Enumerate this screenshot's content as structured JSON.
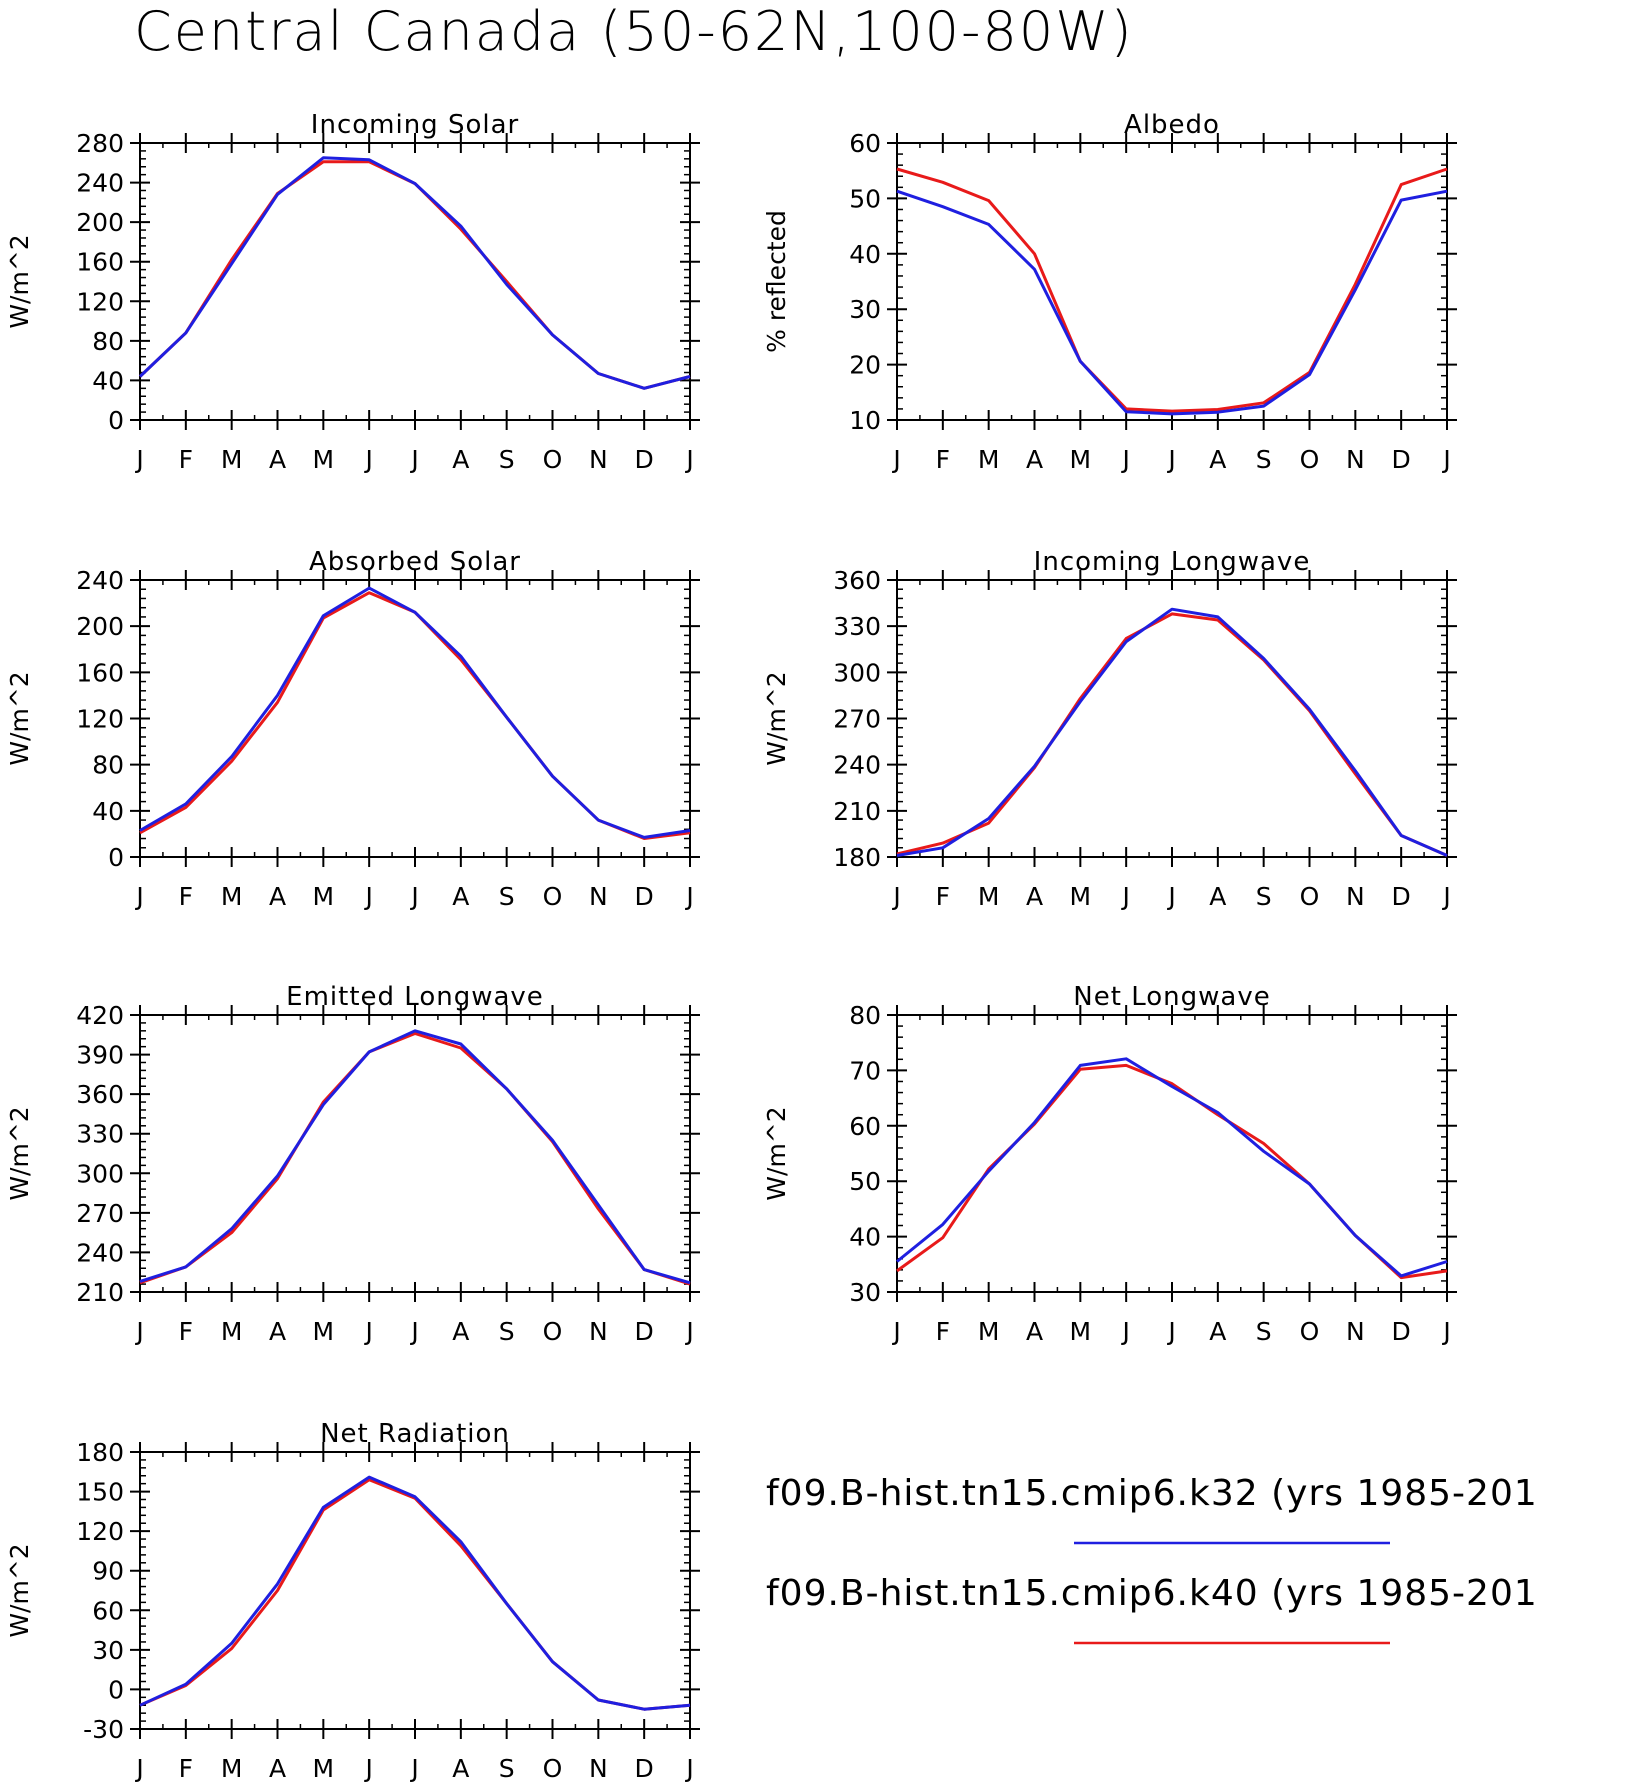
{
  "title": "Central Canada (50-62N,100-80W)",
  "legend": [
    {
      "label": "f09.B-hist.tn15.cmip6.k32 (yrs 1985-201",
      "color": "#1f1fe0"
    },
    {
      "label": "f09.B-hist.tn15.cmip6.k40 (yrs 1985-201",
      "color": "#e81a1a"
    }
  ],
  "chart_data": [
    {
      "type": "line",
      "title": "Incoming Solar",
      "ylabel": "W/m^2",
      "categories": [
        "J",
        "F",
        "M",
        "A",
        "M",
        "J",
        "J",
        "A",
        "S",
        "O",
        "N",
        "D",
        "J"
      ],
      "ylim": [
        0,
        280
      ],
      "yticks": [
        0,
        40,
        80,
        120,
        160,
        200,
        240,
        280
      ],
      "series": [
        {
          "color": "#1f1fe0",
          "values": [
            44,
            88,
            158,
            228,
            265,
            263,
            239,
            196,
            137,
            86,
            47,
            32,
            44
          ]
        },
        {
          "color": "#e81a1a",
          "values": [
            44,
            88,
            162,
            229,
            261,
            261,
            239,
            193,
            140,
            86,
            47,
            32,
            44
          ]
        }
      ]
    },
    {
      "type": "line",
      "title": "Albedo",
      "ylabel": "% reflected",
      "categories": [
        "J",
        "F",
        "M",
        "A",
        "M",
        "J",
        "J",
        "A",
        "S",
        "O",
        "N",
        "D",
        "J"
      ],
      "ylim": [
        10,
        60
      ],
      "yticks": [
        10,
        20,
        30,
        40,
        50,
        60
      ],
      "series": [
        {
          "color": "#1f1fe0",
          "values": [
            51.3,
            48.5,
            45.3,
            37.2,
            20.6,
            11.5,
            11.1,
            11.4,
            12.5,
            18.2,
            33.5,
            49.7,
            51.3
          ]
        },
        {
          "color": "#e81a1a",
          "values": [
            55.3,
            52.9,
            49.6,
            40.0,
            20.6,
            12.0,
            11.6,
            11.9,
            13.1,
            18.6,
            34.5,
            52.5,
            55.3
          ]
        }
      ]
    },
    {
      "type": "line",
      "title": "Absorbed Solar",
      "ylabel": "W/m^2",
      "categories": [
        "J",
        "F",
        "M",
        "A",
        "M",
        "J",
        "J",
        "A",
        "S",
        "O",
        "N",
        "D",
        "J"
      ],
      "ylim": [
        0,
        240
      ],
      "yticks": [
        0,
        40,
        80,
        120,
        160,
        200,
        240
      ],
      "series": [
        {
          "color": "#1f1fe0",
          "values": [
            23,
            46,
            87,
            140,
            209,
            233,
            212,
            174,
            121,
            70,
            32,
            17,
            23
          ]
        },
        {
          "color": "#e81a1a",
          "values": [
            21,
            43,
            83,
            134,
            207,
            229,
            212,
            171,
            121,
            70,
            32,
            16,
            21
          ]
        }
      ]
    },
    {
      "type": "line",
      "title": "Incoming Longwave",
      "ylabel": "W/m^2",
      "categories": [
        "J",
        "F",
        "M",
        "A",
        "M",
        "J",
        "J",
        "A",
        "S",
        "O",
        "N",
        "D",
        "J"
      ],
      "ylim": [
        180,
        360
      ],
      "yticks": [
        180,
        210,
        240,
        270,
        300,
        330,
        360
      ],
      "series": [
        {
          "color": "#1f1fe0",
          "values": [
            181,
            186,
            205,
            239,
            281,
            320,
            341,
            336,
            309,
            276,
            236,
            194,
            181
          ]
        },
        {
          "color": "#e81a1a",
          "values": [
            182,
            189,
            202,
            238,
            283,
            322,
            338,
            334,
            308,
            275,
            234,
            194,
            181
          ]
        }
      ]
    },
    {
      "type": "line",
      "title": "Emitted Longwave",
      "ylabel": "W/m^2",
      "categories": [
        "J",
        "F",
        "M",
        "A",
        "M",
        "J",
        "J",
        "A",
        "S",
        "O",
        "N",
        "D",
        "J"
      ],
      "ylim": [
        210,
        420
      ],
      "yticks": [
        210,
        240,
        270,
        300,
        330,
        360,
        390,
        420
      ],
      "series": [
        {
          "color": "#1f1fe0",
          "values": [
            218,
            229,
            258,
            298,
            352,
            392,
            408,
            398,
            364,
            325,
            276,
            227,
            217
          ]
        },
        {
          "color": "#e81a1a",
          "values": [
            217,
            229,
            255,
            296,
            354,
            392,
            406,
            395,
            364,
            324,
            273,
            227,
            216
          ]
        }
      ]
    },
    {
      "type": "line",
      "title": "Net Longwave",
      "ylabel": "W/m^2",
      "categories": [
        "J",
        "F",
        "M",
        "A",
        "M",
        "J",
        "J",
        "A",
        "S",
        "O",
        "N",
        "D",
        "J"
      ],
      "ylim": [
        30,
        80
      ],
      "yticks": [
        30,
        40,
        50,
        60,
        70,
        80
      ],
      "series": [
        {
          "color": "#1f1fe0",
          "values": [
            35.5,
            42.2,
            51.8,
            60.6,
            70.9,
            72.1,
            67.1,
            62.4,
            55.4,
            49.5,
            40.2,
            32.9,
            35.5
          ]
        },
        {
          "color": "#e81a1a",
          "values": [
            33.8,
            39.8,
            52.2,
            60.3,
            70.2,
            70.9,
            67.6,
            62.0,
            56.8,
            49.5,
            40.2,
            32.6,
            33.8
          ]
        }
      ]
    },
    {
      "type": "line",
      "title": "Net Radiation",
      "ylabel": "W/m^2",
      "categories": [
        "J",
        "F",
        "M",
        "A",
        "M",
        "J",
        "J",
        "A",
        "S",
        "O",
        "N",
        "D",
        "J"
      ],
      "ylim": [
        -30,
        180
      ],
      "yticks": [
        -30,
        0,
        30,
        60,
        90,
        120,
        150,
        180
      ],
      "series": [
        {
          "color": "#1f1fe0",
          "values": [
            -12,
            4,
            35,
            80,
            138,
            161,
            146,
            112,
            65,
            21,
            -8,
            -15,
            -12
          ]
        },
        {
          "color": "#e81a1a",
          "values": [
            -12,
            3,
            31,
            75,
            136,
            159,
            145,
            109,
            65,
            21,
            -8,
            -15,
            -12
          ]
        }
      ]
    }
  ]
}
